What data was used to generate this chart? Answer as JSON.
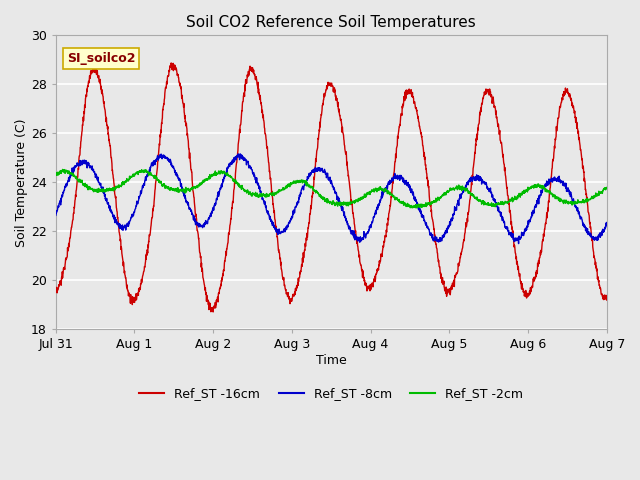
{
  "title": "Soil CO2 Reference Soil Temperatures",
  "xlabel": "Time",
  "ylabel": "Soil Temperature (C)",
  "ylim": [
    18,
    30
  ],
  "xlim": [
    0,
    168
  ],
  "xtick_positions": [
    0,
    24,
    48,
    72,
    96,
    120,
    144,
    168
  ],
  "xtick_labels": [
    "Jul 31",
    "Aug 1",
    "Aug 2",
    "Aug 3",
    "Aug 4",
    "Aug 5",
    "Aug 6",
    "Aug 7"
  ],
  "ytick_positions": [
    18,
    20,
    22,
    24,
    26,
    28,
    30
  ],
  "background_color": "#e8e8e8",
  "plot_bg_color": "#e8e8e8",
  "grid_color": "#ffffff",
  "line_colors": {
    "red": "#cc0000",
    "blue": "#0000cc",
    "green": "#00bb00"
  },
  "legend_label_box_color": "#ffffcc",
  "legend_label_box_edge": "#ccaa00",
  "legend_label_text": "SI_soilco2",
  "legend_entries": [
    "Ref_ST -16cm",
    "Ref_ST -8cm",
    "Ref_ST -2cm"
  ],
  "title_fontsize": 11,
  "axis_fontsize": 9,
  "tick_fontsize": 9,
  "annot_fontsize": 9
}
